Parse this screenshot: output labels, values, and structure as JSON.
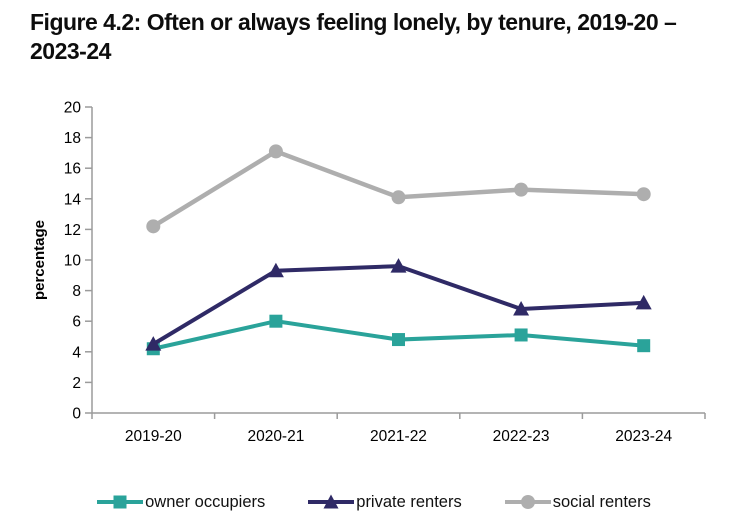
{
  "figure": {
    "title": "Figure 4.2: Often or always feeling lonely, by tenure, 2019-20 – 2023-24"
  },
  "chart_data": {
    "type": "line",
    "title": "Figure 4.2: Often or always feeling lonely, by tenure, 2019-20 – 2023-24",
    "xlabel": "",
    "ylabel": "percentage",
    "ylim": [
      0,
      20
    ],
    "ytick_step": 2,
    "grid": false,
    "legend_position": "bottom",
    "categories": [
      "2019-20",
      "2020-21",
      "2021-22",
      "2022-23",
      "2023-24"
    ],
    "series": [
      {
        "name": "owner occupiers",
        "marker": "square",
        "color": "#2aa39a",
        "values": [
          4.2,
          6.0,
          4.8,
          5.1,
          4.4
        ]
      },
      {
        "name": "private renters",
        "marker": "triangle",
        "color": "#2f2a66",
        "values": [
          4.5,
          9.3,
          9.6,
          6.8,
          7.2
        ]
      },
      {
        "name": "social renters",
        "marker": "circle",
        "color": "#aeaeae",
        "values": [
          12.2,
          17.1,
          14.1,
          14.6,
          14.3
        ]
      }
    ],
    "colors": {
      "axis": "#9b9b9b",
      "tick_text": "#000000",
      "title_text": "#0d0d0d"
    }
  }
}
